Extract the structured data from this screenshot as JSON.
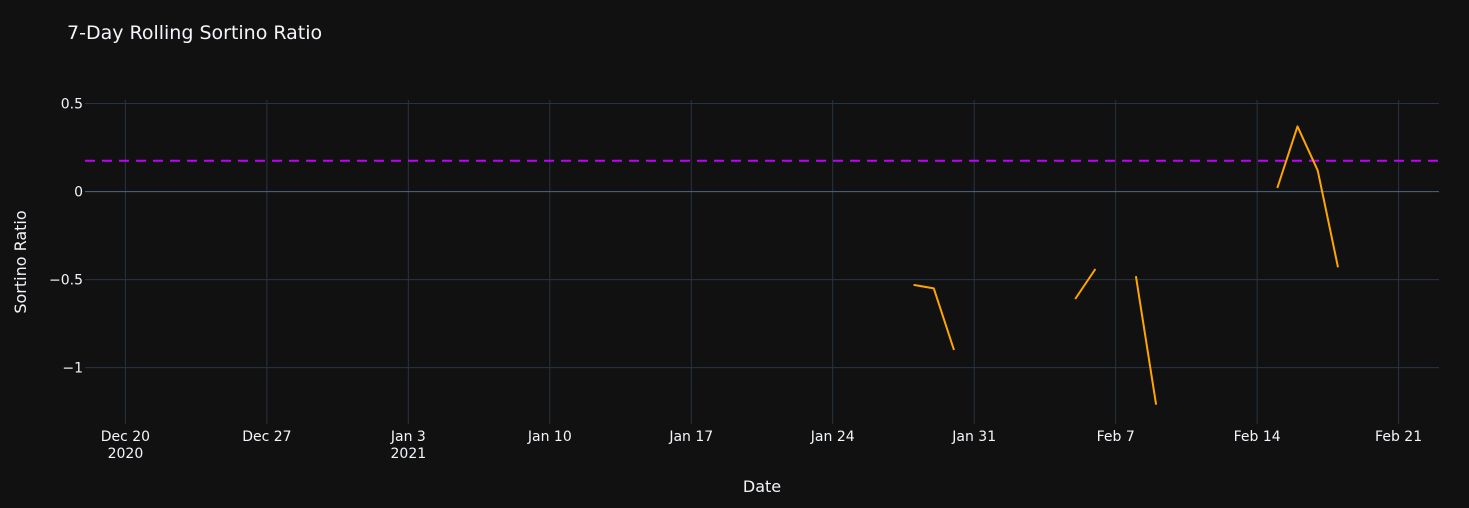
{
  "chart_data": {
    "type": "line",
    "title": "7-Day Rolling Sortino Ratio",
    "xlabel": "Date",
    "ylabel": "Sortino Ratio",
    "xlim": [
      "2020-12-18",
      "2021-02-23"
    ],
    "ylim": [
      -1.32,
      0.52
    ],
    "x_ticks": [
      {
        "date": "2020-12-20",
        "label": "Dec 20",
        "sublabel": "2020"
      },
      {
        "date": "2020-12-27",
        "label": "Dec 27",
        "sublabel": ""
      },
      {
        "date": "2021-01-03",
        "label": "Jan 3",
        "sublabel": "2021"
      },
      {
        "date": "2021-01-10",
        "label": "Jan 10",
        "sublabel": ""
      },
      {
        "date": "2021-01-17",
        "label": "Jan 17",
        "sublabel": ""
      },
      {
        "date": "2021-01-24",
        "label": "Jan 24",
        "sublabel": ""
      },
      {
        "date": "2021-01-31",
        "label": "Jan 31",
        "sublabel": ""
      },
      {
        "date": "2021-02-07",
        "label": "Feb 7",
        "sublabel": ""
      },
      {
        "date": "2021-02-14",
        "label": "Feb 14",
        "sublabel": ""
      },
      {
        "date": "2021-02-21",
        "label": "Feb 21",
        "sublabel": ""
      }
    ],
    "y_ticks": [
      {
        "value": 0.5,
        "label": "0.5"
      },
      {
        "value": 0,
        "label": "0"
      },
      {
        "value": -0.5,
        "label": "−0.5"
      },
      {
        "value": -1,
        "label": "−1"
      }
    ],
    "grid": true,
    "series": [
      {
        "color": "#FFA500",
        "segments": [
          [
            {
              "x": "2021-01-28",
              "y": -0.53
            },
            {
              "x": "2021-01-29",
              "y": -0.55
            },
            {
              "x": "2021-01-30",
              "y": -0.9
            }
          ],
          [
            {
              "x": "2021-02-05",
              "y": -0.61
            },
            {
              "x": "2021-02-06",
              "y": -0.44
            }
          ],
          [
            {
              "x": "2021-02-08",
              "y": -0.48
            },
            {
              "x": "2021-02-09",
              "y": -1.21
            }
          ],
          [
            {
              "x": "2021-02-15",
              "y": 0.02
            },
            {
              "x": "2021-02-16",
              "y": 0.37
            },
            {
              "x": "2021-02-17",
              "y": 0.12
            },
            {
              "x": "2021-02-18",
              "y": -0.43
            }
          ]
        ]
      }
    ],
    "reference_line": {
      "y": 0.175,
      "color": "#BF00FF",
      "style": "dashed"
    }
  }
}
